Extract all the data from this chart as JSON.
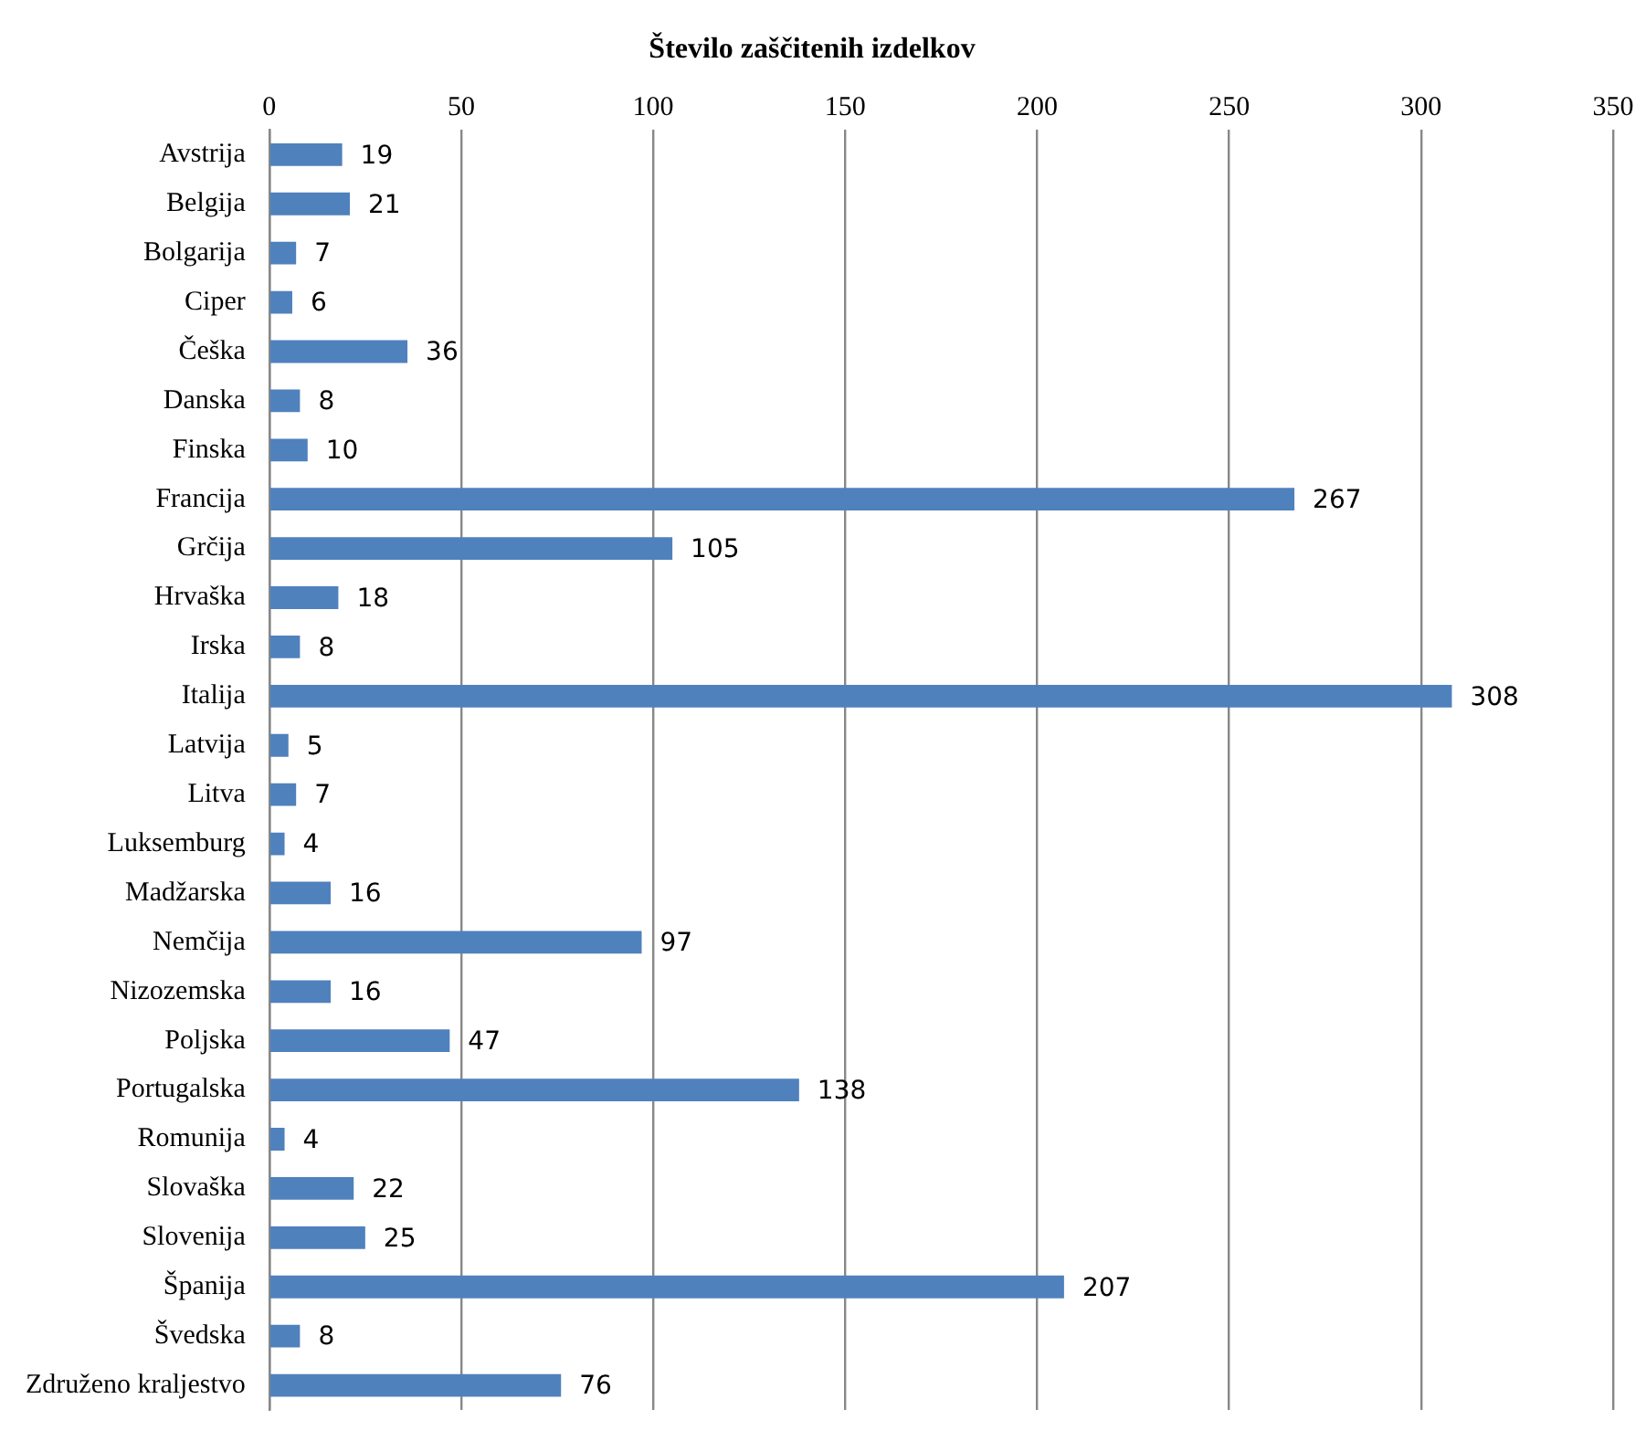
{
  "chart_data": {
    "type": "bar",
    "orientation": "horizontal",
    "title": "Število zaščitenih izdelkov",
    "categories": [
      "Avstrija",
      "Belgija",
      "Bolgarija",
      "Ciper",
      "Češka",
      "Danska",
      "Finska",
      "Francija",
      "Grčija",
      "Hrvaška",
      "Irska",
      "Italija",
      "Latvija",
      "Litva",
      "Luksemburg",
      "Madžarska",
      "Nemčija",
      "Nizozemska",
      "Poljska",
      "Portugalska",
      "Romunija",
      "Slovaška",
      "Slovenija",
      "Španija",
      "Švedska",
      "Združeno kraljestvo"
    ],
    "values": [
      19,
      21,
      7,
      6,
      36,
      8,
      10,
      267,
      105,
      18,
      8,
      308,
      5,
      7,
      4,
      16,
      97,
      16,
      47,
      138,
      4,
      22,
      25,
      207,
      8,
      76
    ],
    "color": "#4f81bd",
    "xlim": [
      0,
      350
    ],
    "xticks": [
      0,
      50,
      100,
      150,
      200,
      250,
      300,
      350
    ],
    "grid": "x",
    "data_labels": true
  }
}
